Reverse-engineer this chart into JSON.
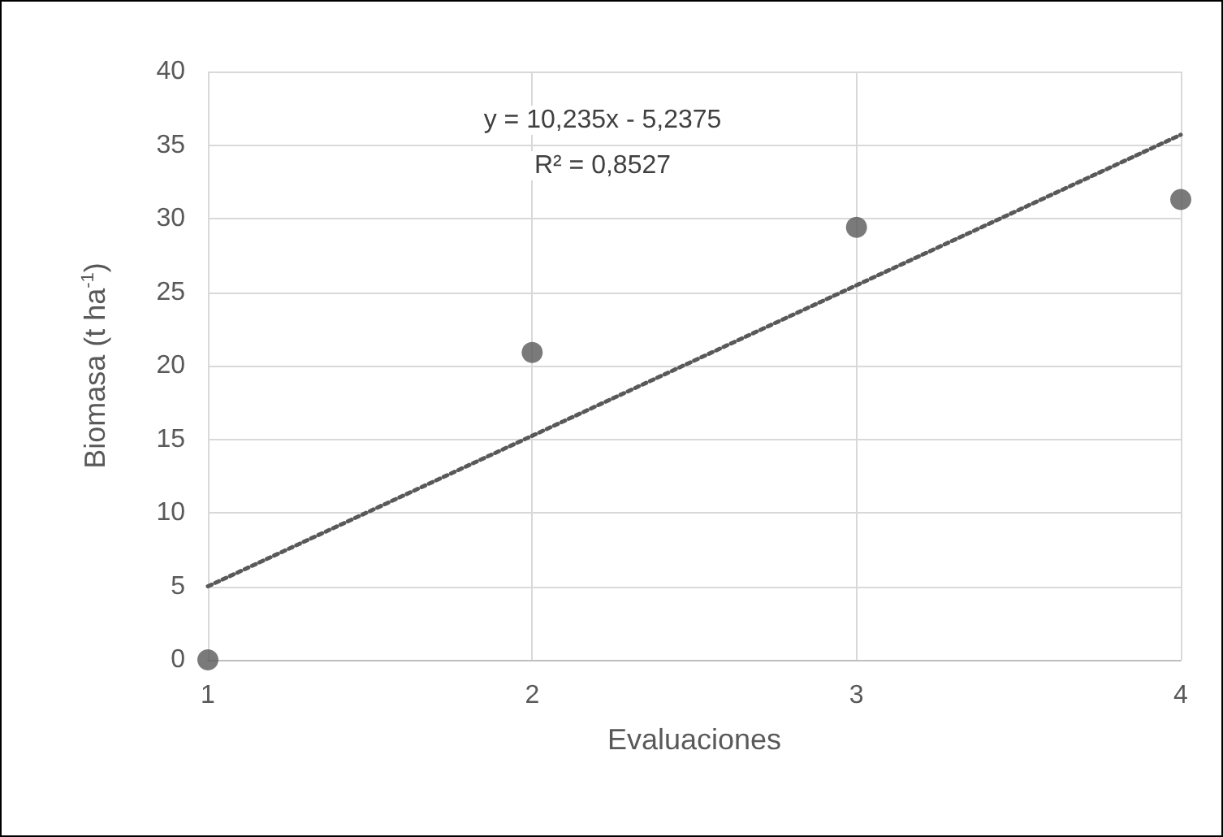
{
  "chart_data": {
    "type": "scatter",
    "xlabel": "Evaluaciones",
    "ylabel": "Biomasa (t ha$^{-1}$)",
    "series": [
      {
        "color": "#595959",
        "marker": "circle",
        "x": [
          1,
          2,
          3,
          4
        ],
        "values": [
          0,
          20.9,
          29.4,
          31.3
        ]
      },
      {
        "type": "line",
        "color": "#595959",
        "marker": "none",
        "line_style": "dotted",
        "x": [
          1,
          4
        ],
        "values": [
          5.0,
          35.7
        ]
      }
    ],
    "annotations": [
      "y = 10,235x - 5,2375",
      "R² = 0,8527"
    ],
    "xlim": [
      1,
      4
    ],
    "xticks": [
      1,
      2,
      3,
      4
    ],
    "ylim": [
      0,
      40
    ],
    "yticks": [
      0,
      5,
      10,
      15,
      20,
      25,
      30,
      35,
      40
    ],
    "grid": true
  }
}
